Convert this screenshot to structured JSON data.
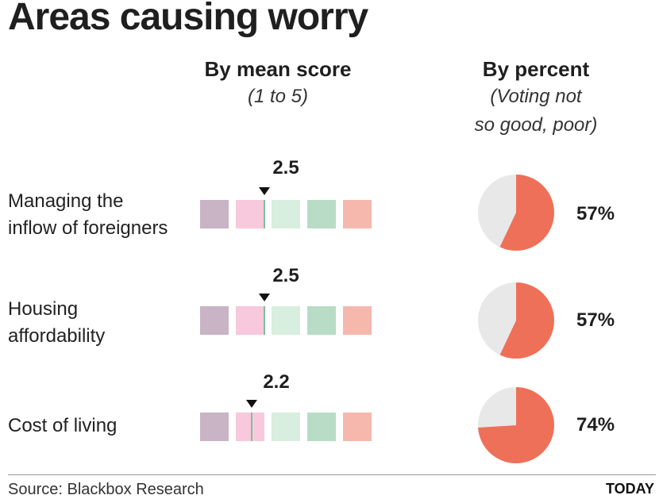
{
  "title": "Areas causing worry",
  "mean_header": {
    "title": "By mean score",
    "subtitle": "(1 to 5)"
  },
  "percent_header": {
    "title": "By percent",
    "subtitle": "(Voting not\nso good, poor)"
  },
  "scale_colors": [
    "#c8b4c4",
    "#f8c8dc",
    "#d8eedf",
    "#b8dcc6",
    "#f6b8ac"
  ],
  "pie_colors": {
    "value": "#ef7058",
    "rest": "#e8e8e8"
  },
  "chart_data": [
    {
      "type": "scatter",
      "title": "By mean score",
      "subtitle": "(1 to 5)",
      "xlim": [
        1,
        5
      ],
      "categories": [
        "Managing the inflow of foreigners",
        "Housing affordability",
        "Cost of living"
      ],
      "values": [
        2.5,
        2.5,
        2.2
      ],
      "value_labels": [
        "2.5",
        "2.5",
        "2.2"
      ]
    },
    {
      "type": "pie",
      "title": "By percent",
      "subtitle": "(Voting not so good, poor)",
      "categories": [
        "Managing the inflow of foreigners",
        "Housing affordability",
        "Cost of living"
      ],
      "values": [
        57,
        57,
        74
      ],
      "value_labels": [
        "57%",
        "57%",
        "74%"
      ]
    }
  ],
  "rows": [
    {
      "label": "Managing the\ninflow of foreigners",
      "score_label": "2.5",
      "percent_label": "57%"
    },
    {
      "label": "Housing\naffordability",
      "score_label": "2.5",
      "percent_label": "57%"
    },
    {
      "label": "Cost of living",
      "score_label": "2.2",
      "percent_label": "74%"
    }
  ],
  "footer": {
    "source": "Source: Blackbox Research",
    "brand": "TODAY"
  }
}
